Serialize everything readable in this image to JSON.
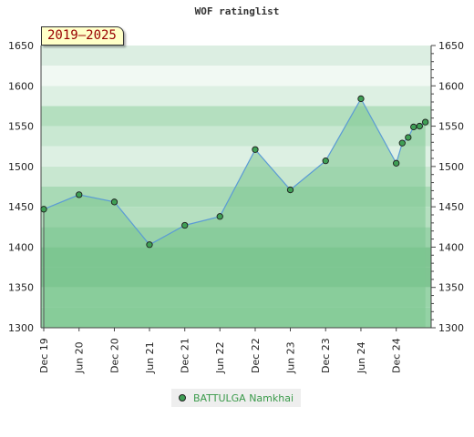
{
  "chart_data": {
    "type": "area",
    "title": "WOF ratinglist",
    "period_badge": "2019–2025",
    "ylim": [
      1300,
      1650
    ],
    "y_ticks": [
      1300,
      1350,
      1400,
      1450,
      1500,
      1550,
      1600,
      1650
    ],
    "x_range": [
      "2019-12-01",
      "2025-05-31"
    ],
    "x_tick_labels": [
      {
        "label": "Dec 19",
        "date": "2019-12-01"
      },
      {
        "label": "Jun 20",
        "date": "2020-06-01"
      },
      {
        "label": "Dec 20",
        "date": "2020-12-01"
      },
      {
        "label": "Jun 21",
        "date": "2021-06-01"
      },
      {
        "label": "Dec 21",
        "date": "2021-12-01"
      },
      {
        "label": "Jun 22",
        "date": "2022-06-01"
      },
      {
        "label": "Dec 22",
        "date": "2022-12-01"
      },
      {
        "label": "Jun 23",
        "date": "2023-06-01"
      },
      {
        "label": "Dec 23",
        "date": "2023-12-01"
      },
      {
        "label": "Jun 24",
        "date": "2024-06-01"
      },
      {
        "label": "Dec 24",
        "date": "2024-12-01"
      }
    ],
    "series": [
      {
        "name": "BATTULGA Namkhai",
        "points": [
          {
            "x": "2019-12-01",
            "y": 1447
          },
          {
            "x": "2020-06-01",
            "y": 1465
          },
          {
            "x": "2020-12-01",
            "y": 1456
          },
          {
            "x": "2021-06-01",
            "y": 1403
          },
          {
            "x": "2021-12-01",
            "y": 1427
          },
          {
            "x": "2022-06-01",
            "y": 1438
          },
          {
            "x": "2022-12-01",
            "y": 1521
          },
          {
            "x": "2023-06-01",
            "y": 1471
          },
          {
            "x": "2023-12-01",
            "y": 1507
          },
          {
            "x": "2024-06-01",
            "y": 1584
          },
          {
            "x": "2024-12-01",
            "y": 1504
          },
          {
            "x": "2025-01-01",
            "y": 1529
          },
          {
            "x": "2025-02-01",
            "y": 1536
          },
          {
            "x": "2025-03-01",
            "y": 1549
          },
          {
            "x": "2025-04-01",
            "y": 1550
          },
          {
            "x": "2025-05-01",
            "y": 1555
          }
        ]
      }
    ],
    "legend": {
      "position": "bottom-center"
    },
    "colors": {
      "area_fill": "#7cc68f",
      "line": "#5b9bd5",
      "marker": "#3f9f55",
      "legend_text": "#3a9a4a",
      "badge_text": "#990000",
      "badge_bg": "#ffffc8"
    }
  }
}
